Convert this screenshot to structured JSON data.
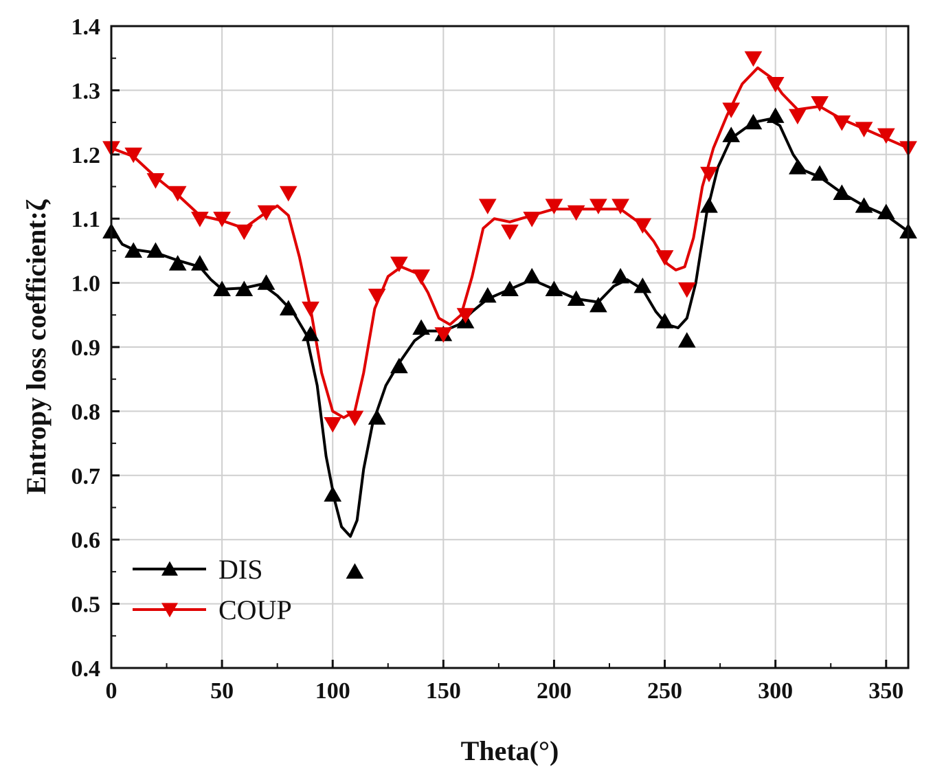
{
  "chart_data": {
    "type": "line",
    "xlabel": "Theta(°)",
    "ylabel": "Entropy loss coefficient:ζ",
    "xlim": [
      0,
      360
    ],
    "ylim": [
      0.4,
      1.4
    ],
    "xticks": [
      0,
      50,
      100,
      150,
      200,
      250,
      300,
      350
    ],
    "yticks": [
      0.4,
      0.5,
      0.6,
      0.7,
      0.8,
      0.9,
      1.0,
      1.1,
      1.2,
      1.3,
      1.4
    ],
    "ytick_labels": [
      "0.4",
      "0.5",
      "0.6",
      "0.7",
      "0.8",
      "0.9",
      "1.0",
      "1.1",
      "1.2",
      "1.3",
      "1.4"
    ],
    "grid": true,
    "legend_position": "bottom-left",
    "series": [
      {
        "name": "DIS",
        "color": "#000000",
        "marker": "triangle-up",
        "x": [
          0,
          10,
          20,
          30,
          40,
          50,
          60,
          70,
          80,
          90,
          100,
          110,
          120,
          130,
          140,
          150,
          160,
          170,
          180,
          190,
          200,
          210,
          220,
          230,
          240,
          250,
          260,
          270,
          280,
          290,
          300,
          310,
          320,
          330,
          340,
          350,
          360
        ],
        "values": [
          1.08,
          1.05,
          1.05,
          1.03,
          1.03,
          0.99,
          0.99,
          1.0,
          0.96,
          0.92,
          0.67,
          0.55,
          0.79,
          0.87,
          0.93,
          0.92,
          0.94,
          0.98,
          0.99,
          1.01,
          0.99,
          0.975,
          0.965,
          1.01,
          0.995,
          0.94,
          0.91,
          1.12,
          1.23,
          1.25,
          1.26,
          1.18,
          1.17,
          1.14,
          1.12,
          1.11,
          1.08
        ],
        "curve": [
          [
            0,
            1.085
          ],
          [
            5,
            1.06
          ],
          [
            10,
            1.052
          ],
          [
            20,
            1.047
          ],
          [
            30,
            1.035
          ],
          [
            40,
            1.025
          ],
          [
            45,
            1.005
          ],
          [
            50,
            0.99
          ],
          [
            60,
            0.992
          ],
          [
            68,
            0.998
          ],
          [
            75,
            0.98
          ],
          [
            82,
            0.955
          ],
          [
            88,
            0.92
          ],
          [
            93,
            0.84
          ],
          [
            97,
            0.73
          ],
          [
            101,
            0.66
          ],
          [
            104,
            0.62
          ],
          [
            108,
            0.605
          ],
          [
            111,
            0.63
          ],
          [
            114,
            0.71
          ],
          [
            118,
            0.78
          ],
          [
            124,
            0.84
          ],
          [
            130,
            0.875
          ],
          [
            137,
            0.91
          ],
          [
            143,
            0.925
          ],
          [
            150,
            0.925
          ],
          [
            157,
            0.935
          ],
          [
            163,
            0.955
          ],
          [
            170,
            0.975
          ],
          [
            180,
            0.99
          ],
          [
            190,
            1.005
          ],
          [
            200,
            0.99
          ],
          [
            210,
            0.975
          ],
          [
            220,
            0.97
          ],
          [
            227,
            0.995
          ],
          [
            233,
            1.005
          ],
          [
            240,
            0.99
          ],
          [
            246,
            0.955
          ],
          [
            251,
            0.935
          ],
          [
            256,
            0.93
          ],
          [
            260,
            0.945
          ],
          [
            264,
            1.0
          ],
          [
            269,
            1.11
          ],
          [
            274,
            1.18
          ],
          [
            280,
            1.225
          ],
          [
            290,
            1.25
          ],
          [
            297,
            1.255
          ],
          [
            302,
            1.245
          ],
          [
            308,
            1.2
          ],
          [
            313,
            1.175
          ],
          [
            320,
            1.165
          ],
          [
            330,
            1.14
          ],
          [
            340,
            1.12
          ],
          [
            350,
            1.105
          ],
          [
            360,
            1.08
          ]
        ]
      },
      {
        "name": "COUP",
        "color": "#e00000",
        "marker": "triangle-down",
        "x": [
          0,
          10,
          20,
          30,
          40,
          50,
          60,
          70,
          80,
          90,
          100,
          110,
          120,
          130,
          140,
          150,
          160,
          170,
          180,
          190,
          200,
          210,
          220,
          230,
          240,
          250,
          260,
          270,
          280,
          290,
          300,
          310,
          320,
          330,
          340,
          350,
          360
        ],
        "values": [
          1.21,
          1.2,
          1.16,
          1.14,
          1.1,
          1.1,
          1.08,
          1.11,
          1.14,
          0.96,
          0.78,
          0.79,
          0.98,
          1.03,
          1.01,
          0.92,
          0.95,
          1.12,
          1.08,
          1.1,
          1.12,
          1.11,
          1.12,
          1.12,
          1.09,
          1.04,
          0.99,
          1.17,
          1.27,
          1.35,
          1.31,
          1.26,
          1.28,
          1.25,
          1.24,
          1.23,
          1.21
        ],
        "curve": [
          [
            0,
            1.21
          ],
          [
            10,
            1.197
          ],
          [
            20,
            1.165
          ],
          [
            30,
            1.137
          ],
          [
            40,
            1.105
          ],
          [
            50,
            1.097
          ],
          [
            60,
            1.085
          ],
          [
            68,
            1.105
          ],
          [
            75,
            1.12
          ],
          [
            80,
            1.105
          ],
          [
            85,
            1.04
          ],
          [
            90,
            0.96
          ],
          [
            95,
            0.86
          ],
          [
            100,
            0.8
          ],
          [
            105,
            0.79
          ],
          [
            110,
            0.8
          ],
          [
            114,
            0.86
          ],
          [
            119,
            0.96
          ],
          [
            125,
            1.01
          ],
          [
            131,
            1.025
          ],
          [
            138,
            1.015
          ],
          [
            143,
            0.985
          ],
          [
            148,
            0.945
          ],
          [
            153,
            0.935
          ],
          [
            158,
            0.95
          ],
          [
            163,
            1.01
          ],
          [
            168,
            1.085
          ],
          [
            173,
            1.1
          ],
          [
            180,
            1.095
          ],
          [
            190,
            1.105
          ],
          [
            200,
            1.115
          ],
          [
            210,
            1.115
          ],
          [
            220,
            1.115
          ],
          [
            230,
            1.115
          ],
          [
            238,
            1.095
          ],
          [
            245,
            1.065
          ],
          [
            251,
            1.03
          ],
          [
            255,
            1.02
          ],
          [
            259,
            1.025
          ],
          [
            263,
            1.07
          ],
          [
            267,
            1.15
          ],
          [
            272,
            1.21
          ],
          [
            278,
            1.26
          ],
          [
            285,
            1.31
          ],
          [
            292,
            1.335
          ],
          [
            298,
            1.32
          ],
          [
            303,
            1.295
          ],
          [
            310,
            1.27
          ],
          [
            320,
            1.275
          ],
          [
            330,
            1.255
          ],
          [
            340,
            1.24
          ],
          [
            350,
            1.225
          ],
          [
            360,
            1.21
          ]
        ]
      }
    ]
  }
}
